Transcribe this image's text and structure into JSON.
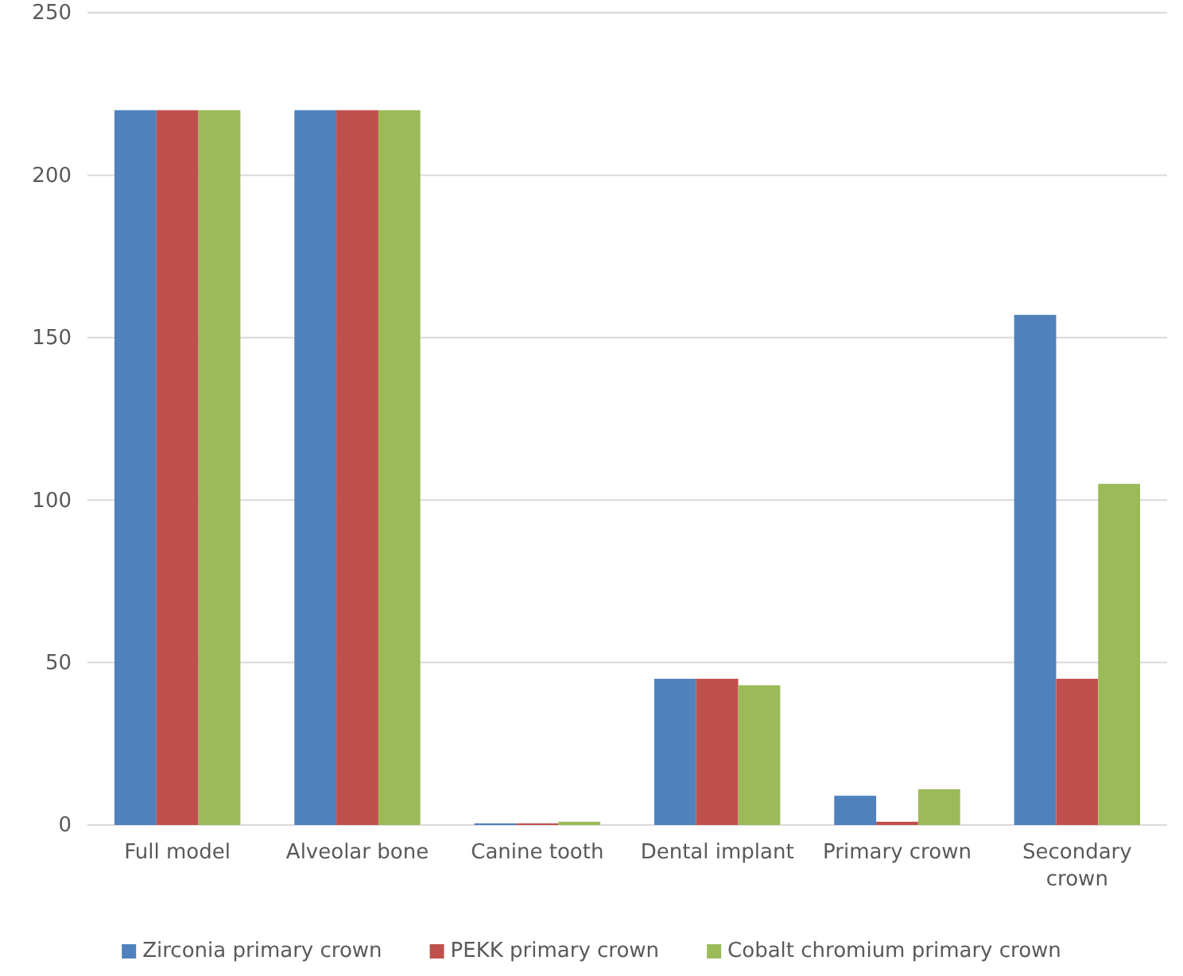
{
  "chart_data": {
    "type": "bar",
    "categories": [
      "Full model",
      "Alveolar bone",
      "Canine tooth",
      "Dental implant",
      "Primary crown",
      "Secondary crown"
    ],
    "series": [
      {
        "name": "Zirconia primary crown",
        "color": "#4f81bd",
        "values": [
          220,
          220,
          0.5,
          45,
          9,
          157
        ]
      },
      {
        "name": "PEKK primary crown",
        "color": "#c0504d",
        "values": [
          220,
          220,
          0.5,
          45,
          1,
          45
        ]
      },
      {
        "name": "Cobalt chromium primary crown",
        "color": "#9bbb59",
        "values": [
          220,
          220,
          1,
          43,
          11,
          105
        ]
      }
    ],
    "ylim": [
      0,
      250
    ],
    "yticks": [
      0,
      50,
      100,
      150,
      200,
      250
    ],
    "grid": true,
    "legend": "bottom"
  }
}
